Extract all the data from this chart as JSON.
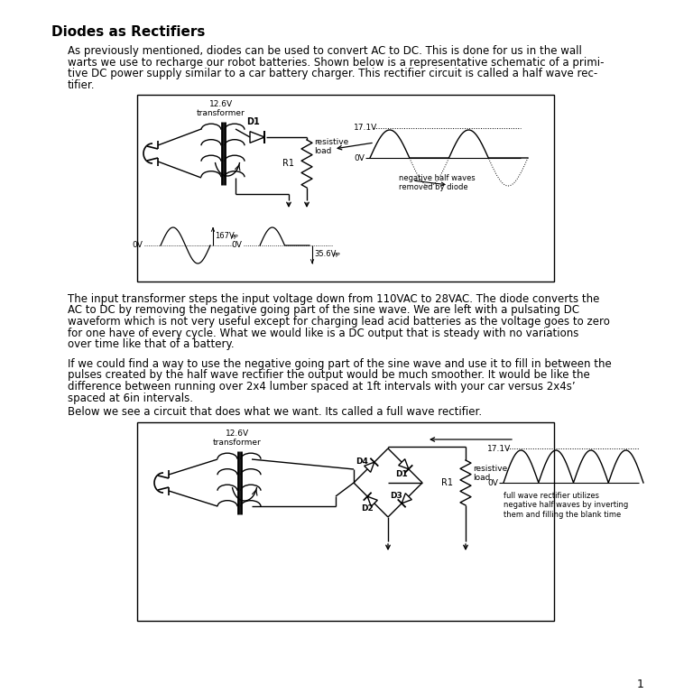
{
  "title": "Diodes as Rectifiers",
  "bg_color": "#ffffff",
  "body_text_1a": "As previously mentioned, diodes can be used to convert AC to DC. This is done for us in the wall",
  "body_text_1b": "warts we use to recharge our robot batteries. Shown below is a representative schematic of a primi-",
  "body_text_1c": "tive DC power supply similar to a car battery charger. This rectifier circuit is called a half wave rec-",
  "body_text_1d": "tifier.",
  "body_text_2a": "The input transformer steps the input voltage down from 110VAC to 28VAC. The diode converts the",
  "body_text_2b": "AC to DC by removing the negative going part of the sine wave. We are left with a pulsating DC",
  "body_text_2c": "waveform which is not very useful except for charging lead acid batteries as the voltage goes to zero",
  "body_text_2d": "for one have of every cycle. What we would like is a DC output that is steady with no variations",
  "body_text_2e": "over time like that of a battery.",
  "body_text_3a": "If we could find a way to use the negative going part of the sine wave and use it to fill in between the",
  "body_text_3b": "pulses created by the half wave rectifier the output would be much smoother. It would be like the",
  "body_text_3c": "difference between running over 2x4 lumber spaced at 1ft intervals with your car versus 2x4s’",
  "body_text_3d": "spaced at 6in intervals.",
  "body_text_4": "Below we see a circuit that does what we want. Its called a full wave rectifier.",
  "page_number": "1"
}
